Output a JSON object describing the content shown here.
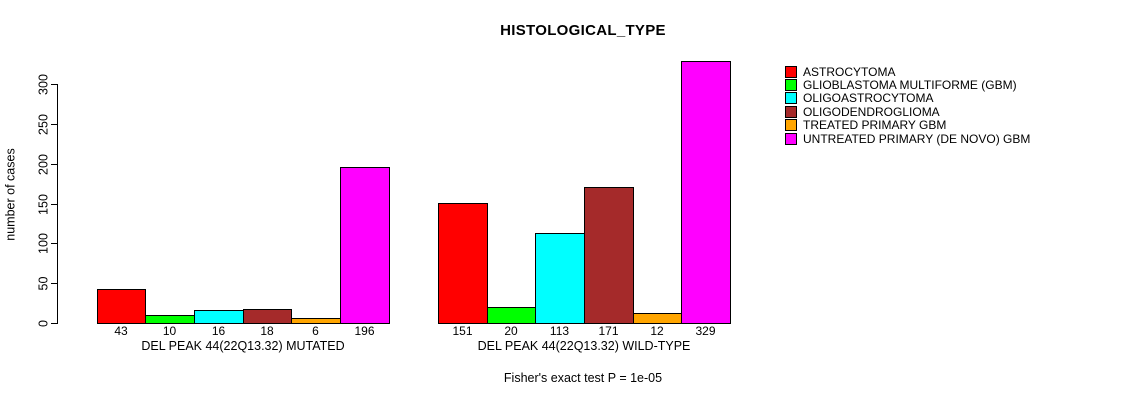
{
  "chart_data": {
    "type": "bar",
    "title": "HISTOLOGICAL_TYPE",
    "xlabel": "",
    "ylabel": "number of cases",
    "ylim": [
      0,
      335
    ],
    "yticks": [
      0,
      50,
      100,
      150,
      200,
      250,
      300
    ],
    "grid": false,
    "legend_position": "top-right",
    "bar_outline_color": "#000000",
    "categories": [
      "DEL PEAK 44(22Q13.32) MUTATED",
      "DEL PEAK 44(22Q13.32) WILD-TYPE"
    ],
    "series": [
      {
        "name": "ASTROCYTOMA",
        "color": "#FF0000",
        "values": [
          43,
          151
        ]
      },
      {
        "name": "GLIOBLASTOMA MULTIFORME (GBM)",
        "color": "#00FF00",
        "values": [
          10,
          20
        ]
      },
      {
        "name": "OLIGOASTROCYTOMA",
        "color": "#00FFFF",
        "values": [
          16,
          113
        ]
      },
      {
        "name": "OLIGODENDROGLIOMA",
        "color": "#A52A2A",
        "values": [
          18,
          171
        ]
      },
      {
        "name": "TREATED PRIMARY GBM",
        "color": "#FFA500",
        "values": [
          6,
          12
        ]
      },
      {
        "name": "UNTREATED PRIMARY (DE NOVO) GBM",
        "color": "#FF00FF",
        "values": [
          196,
          329
        ]
      }
    ],
    "bar_value_labels": [
      [
        43,
        10,
        16,
        18,
        6,
        196
      ],
      [
        151,
        20,
        113,
        171,
        12,
        329
      ]
    ],
    "annotation": "Fisher's exact test P = 1e-05"
  }
}
